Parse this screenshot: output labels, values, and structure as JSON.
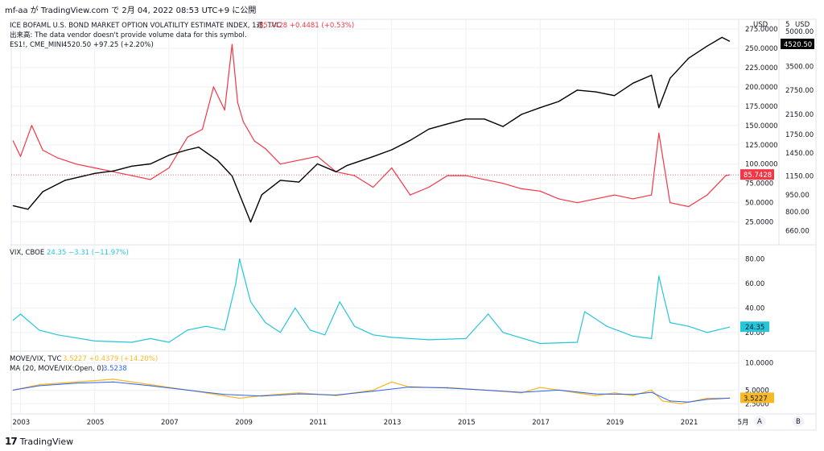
{
  "header": {
    "text": "mf-aa が TradingView.com で 2月 04, 2022 08:53 UTC+9 に公開"
  },
  "footer": {
    "logo_text": "TradingView",
    "logo_mark": "17"
  },
  "colors": {
    "move": "#f23645",
    "es": "#000000",
    "vix": "#26c6da",
    "ratio": "#f7b928",
    "ma": "#2962ff",
    "grid": "#eef0f3",
    "border": "#e0e3eb"
  },
  "chart_data": {
    "type": "line",
    "x_axis": {
      "labels": [
        "2003",
        "2005",
        "2007",
        "2009",
        "2011",
        "2013",
        "2015",
        "2017",
        "2019",
        "2021",
        "5月"
      ]
    },
    "panes": [
      {
        "legend": [
          {
            "text": "ICE BOFAML U.S. BOND MARKET OPTION VOLATILITY ESTIMATE INDEX, 1週, TVC",
            "color": "#131722"
          },
          {
            "text": "85.7428 +0.4481 (+0.53%)",
            "color": "#f23645"
          }
        ],
        "legend2": "出来高: The data vendor doesn't provide volume data for this symbol.",
        "legend3": [
          {
            "text": "ES1!, CME_MINI",
            "color": "#131722"
          },
          {
            "text": "4520.50 +97.25 (+2.20%)",
            "color": "#131722"
          }
        ],
        "left_axis_ticks": [
          "275.0000",
          "250.0000",
          "225.0000",
          "200.0000",
          "175.0000",
          "150.0000",
          "125.0000",
          "100.0000",
          "75.0000",
          "50.0000",
          "25.0000"
        ],
        "right_axis_ticks": [
          "5000.00",
          "3500.00",
          "2750.00",
          "2150.00",
          "1750.00",
          "1450.00",
          "1150.00",
          "950.00",
          "800.00",
          "660.00"
        ],
        "currency": "USD",
        "scale_label": "5",
        "series": [
          {
            "name": "MOVE",
            "last_label": "85.7428",
            "x": [
              2002.8,
              2003.0,
              2003.3,
              2003.6,
              2004.0,
              2004.5,
              2005.0,
              2005.5,
              2006.0,
              2006.5,
              2007.0,
              2007.5,
              2007.9,
              2008.2,
              2008.5,
              2008.7,
              2008.85,
              2009.0,
              2009.3,
              2009.6,
              2010.0,
              2010.5,
              2011.0,
              2011.5,
              2012.0,
              2012.5,
              2013.0,
              2013.5,
              2014.0,
              2014.5,
              2015.0,
              2015.5,
              2016.0,
              2016.5,
              2017.0,
              2017.5,
              2018.0,
              2018.5,
              2019.0,
              2019.5,
              2020.0,
              2020.2,
              2020.5,
              2021.0,
              2021.5,
              2022.0,
              2022.1
            ],
            "y": [
              130,
              110,
              150,
              118,
              108,
              100,
              95,
              90,
              85,
              80,
              95,
              135,
              145,
              200,
              170,
              255,
              180,
              155,
              130,
              120,
              100,
              105,
              110,
              90,
              85,
              70,
              95,
              60,
              70,
              85,
              85,
              80,
              75,
              68,
              65,
              55,
              50,
              55,
              60,
              55,
              60,
              140,
              50,
              45,
              60,
              85,
              86
            ]
          },
          {
            "name": "ES1!",
            "last_label": "4520.50",
            "x": [
              2002.8,
              2003.2,
              2003.6,
              2004.2,
              2005.0,
              2005.5,
              2006.0,
              2006.5,
              2007.0,
              2007.5,
              2007.8,
              2008.3,
              2008.7,
              2009.2,
              2009.5,
              2010.0,
              2010.5,
              2011.0,
              2011.5,
              2011.8,
              2012.5,
              2013.0,
              2013.5,
              2014.0,
              2014.5,
              2015.0,
              2015.5,
              2016.0,
              2016.5,
              2017.0,
              2017.5,
              2018.0,
              2018.5,
              2019.0,
              2019.5,
              2020.0,
              2020.2,
              2020.5,
              2021.0,
              2021.5,
              2021.9,
              2022.1
            ],
            "y": [
              850,
              820,
              980,
              1100,
              1180,
              1210,
              1270,
              1300,
              1420,
              1500,
              1540,
              1350,
              1150,
              720,
              950,
              1100,
              1080,
              1300,
              1200,
              1280,
              1400,
              1500,
              1650,
              1850,
              1950,
              2050,
              2050,
              1900,
              2150,
              2300,
              2450,
              2750,
              2700,
              2600,
              2950,
              3200,
              2300,
              3100,
              3800,
              4300,
              4700,
              4520
            ]
          }
        ]
      },
      {
        "legend": [
          {
            "text": "VIX, CBOE",
            "color": "#131722"
          },
          {
            "text": "24.35 −3.31 (−11.97%)",
            "color": "#26c6da"
          }
        ],
        "left_axis_ticks": [
          "80.00",
          "60.00",
          "40.00",
          "20.00"
        ],
        "series": [
          {
            "name": "VIX",
            "last_label": "24.35",
            "x": [
              2002.8,
              2003.0,
              2003.5,
              2004.0,
              2005.0,
              2006.0,
              2006.5,
              2007.0,
              2007.5,
              2008.0,
              2008.5,
              2008.8,
              2008.9,
              2009.2,
              2009.6,
              2010.0,
              2010.4,
              2010.8,
              2011.2,
              2011.6,
              2012.0,
              2012.5,
              2013.0,
              2014.0,
              2015.0,
              2015.6,
              2016.0,
              2017.0,
              2018.0,
              2018.2,
              2018.8,
              2019.5,
              2020.0,
              2020.2,
              2020.5,
              2021.0,
              2021.5,
              2022.1
            ],
            "y": [
              30,
              35,
              22,
              18,
              13,
              12,
              15,
              12,
              22,
              25,
              22,
              60,
              80,
              45,
              28,
              20,
              40,
              22,
              18,
              45,
              25,
              18,
              16,
              14,
              15,
              35,
              20,
              11,
              12,
              37,
              25,
              17,
              15,
              66,
              28,
              25,
              20,
              24.35
            ]
          }
        ]
      },
      {
        "legend": [
          {
            "text": "MOVE/VIX, TVC",
            "color": "#131722"
          },
          {
            "text": "3.5227 +0.4379 (+14.20%)",
            "color": "#f7b928"
          }
        ],
        "legend2": [
          {
            "text": "MA (20, MOVE/VIX:Open, 0)",
            "color": "#131722"
          },
          {
            "text": "3.5238",
            "color": "#2962ff"
          }
        ],
        "left_axis_ticks": [
          "10.0000",
          "5.0000",
          "2.5000"
        ],
        "series": [
          {
            "name": "MOVE/VIX",
            "last_label": "3.5227",
            "x": [
              2002.8,
              2003.5,
              2004.5,
              2005.5,
              2006.5,
              2007.5,
              2008.0,
              2008.9,
              2009.5,
              2010.5,
              2011.5,
              2012.5,
              2013.0,
              2013.5,
              2014.5,
              2015.5,
              2016.5,
              2017.0,
              2017.5,
              2018.0,
              2018.5,
              2019.0,
              2019.5,
              2020.0,
              2020.3,
              2020.8,
              2021.5,
              2022.1
            ],
            "y": [
              5.0,
              6.0,
              6.5,
              7.0,
              6.0,
              5.0,
              4.5,
              3.5,
              4.0,
              4.5,
              4.0,
              5.0,
              6.5,
              5.5,
              5.5,
              5.0,
              4.5,
              5.5,
              5.0,
              4.5,
              4.0,
              4.5,
              4.0,
              5.0,
              3.0,
              2.5,
              3.5,
              3.52
            ]
          },
          {
            "name": "MA",
            "last_label": "",
            "x": [
              2002.8,
              2003.5,
              2004.5,
              2005.5,
              2006.5,
              2007.5,
              2008.5,
              2009.5,
              2010.5,
              2011.5,
              2012.5,
              2013.5,
              2014.5,
              2015.5,
              2016.5,
              2017.5,
              2018.5,
              2019.5,
              2020.0,
              2020.5,
              2021.0,
              2021.5,
              2022.1
            ],
            "y": [
              5.0,
              5.8,
              6.3,
              6.5,
              5.8,
              5.0,
              4.2,
              3.9,
              4.3,
              4.1,
              4.8,
              5.6,
              5.4,
              5.0,
              4.6,
              5.0,
              4.3,
              4.2,
              4.6,
              3.0,
              2.8,
              3.3,
              3.52
            ]
          }
        ]
      }
    ]
  }
}
